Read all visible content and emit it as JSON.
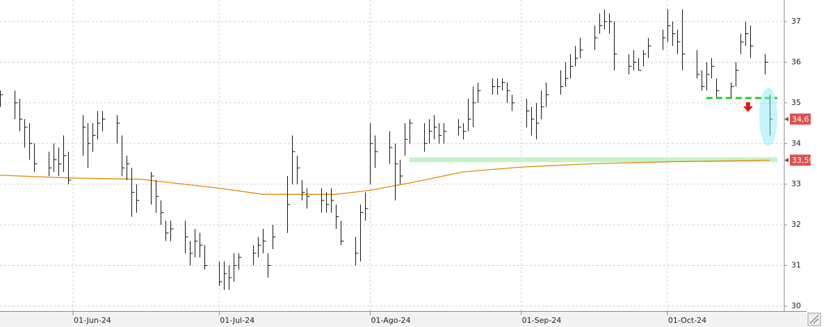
{
  "chart_data": {
    "type": "ohlc",
    "x": [
      "2024-05-17",
      "2024-05-20",
      "2024-05-21",
      "2024-05-22",
      "2024-05-23",
      "2024-05-24",
      "2024-05-27",
      "2024-05-28",
      "2024-05-29",
      "2024-05-30",
      "2024-05-31",
      "2024-06-03",
      "2024-06-04",
      "2024-06-05",
      "2024-06-06",
      "2024-06-07",
      "2024-06-10",
      "2024-06-11",
      "2024-06-12",
      "2024-06-13",
      "2024-06-14",
      "2024-06-17",
      "2024-06-18",
      "2024-06-19",
      "2024-06-20",
      "2024-06-21",
      "2024-06-24",
      "2024-06-25",
      "2024-06-26",
      "2024-06-27",
      "2024-06-28",
      "2024-07-01",
      "2024-07-02",
      "2024-07-03",
      "2024-07-04",
      "2024-07-05",
      "2024-07-08",
      "2024-07-09",
      "2024-07-10",
      "2024-07-11",
      "2024-07-12",
      "2024-07-15",
      "2024-07-16",
      "2024-07-17",
      "2024-07-18",
      "2024-07-19",
      "2024-07-22",
      "2024-07-23",
      "2024-07-24",
      "2024-07-25",
      "2024-07-26",
      "2024-07-29",
      "2024-07-30",
      "2024-07-31",
      "2024-08-01",
      "2024-08-02",
      "2024-08-05",
      "2024-08-06",
      "2024-08-07",
      "2024-08-08",
      "2024-08-09",
      "2024-08-12",
      "2024-08-13",
      "2024-08-14",
      "2024-08-15",
      "2024-08-16",
      "2024-08-19",
      "2024-08-20",
      "2024-08-21",
      "2024-08-22",
      "2024-08-23",
      "2024-08-26",
      "2024-08-27",
      "2024-08-28",
      "2024-08-29",
      "2024-08-30",
      "2024-09-02",
      "2024-09-03",
      "2024-09-04",
      "2024-09-05",
      "2024-09-06",
      "2024-09-09",
      "2024-09-10",
      "2024-09-11",
      "2024-09-12",
      "2024-09-13",
      "2024-09-16",
      "2024-09-17",
      "2024-09-18",
      "2024-09-19",
      "2024-09-20",
      "2024-09-23",
      "2024-09-24",
      "2024-09-25",
      "2024-09-26",
      "2024-09-27",
      "2024-09-30",
      "2024-10-01",
      "2024-10-02",
      "2024-10-03",
      "2024-10-04",
      "2024-10-07",
      "2024-10-08",
      "2024-10-09",
      "2024-10-10",
      "2024-10-11",
      "2024-10-14",
      "2024-10-15",
      "2024-10-16",
      "2024-10-17",
      "2024-10-18",
      "2024-10-21",
      "2024-10-22"
    ],
    "high": [
      35.3,
      35.3,
      35.1,
      34.6,
      34.5,
      34.0,
      33.8,
      34.0,
      33.9,
      34.2,
      33.8,
      34.7,
      34.5,
      34.5,
      34.8,
      34.8,
      34.7,
      34.2,
      33.7,
      33.4,
      33.0,
      33.3,
      33.1,
      32.6,
      32.1,
      32.1,
      32.1,
      31.6,
      31.9,
      31.8,
      31.5,
      31.1,
      31.1,
      31.0,
      31.3,
      31.3,
      31.5,
      31.7,
      31.9,
      31.3,
      32.0,
      33.2,
      34.2,
      33.7,
      33.1,
      32.9,
      32.9,
      32.8,
      32.9,
      32.5,
      32.1,
      31.7,
      32.5,
      32.8,
      34.5,
      34.2,
      34.3,
      34.0,
      33.6,
      34.5,
      34.6,
      34.5,
      34.6,
      34.7,
      34.5,
      34.5,
      34.6,
      34.5,
      35.1,
      35.4,
      35.5,
      35.6,
      35.6,
      35.6,
      35.5,
      35.2,
      35.1,
      34.9,
      35.0,
      35.3,
      35.5,
      35.8,
      36.0,
      36.2,
      36.4,
      36.6,
      36.9,
      37.2,
      37.3,
      37.2,
      37.0,
      36.2,
      36.3,
      36.1,
      36.3,
      36.6,
      36.8,
      37.3,
      37.0,
      36.8,
      37.3,
      36.3,
      35.8,
      36.0,
      36.1,
      35.6,
      35.5,
      36.0,
      36.7,
      37.0,
      36.9,
      36.2,
      35.2
    ],
    "low": [
      34.9,
      34.6,
      34.3,
      33.9,
      33.6,
      33.3,
      33.2,
      33.3,
      33.2,
      33.3,
      33.0,
      33.7,
      33.4,
      33.8,
      34.1,
      34.3,
      34.0,
      33.2,
      33.1,
      32.2,
      32.3,
      32.5,
      32.3,
      32.0,
      31.6,
      31.6,
      31.3,
      31.0,
      31.2,
      31.2,
      30.9,
      30.5,
      30.4,
      30.4,
      30.6,
      30.9,
      31.0,
      31.2,
      31.3,
      30.7,
      31.4,
      31.8,
      33.0,
      33.0,
      32.6,
      32.4,
      32.3,
      32.3,
      32.3,
      31.9,
      31.5,
      31.0,
      31.1,
      32.1,
      33.0,
      33.4,
      33.5,
      32.6,
      33.0,
      33.7,
      34.0,
      33.8,
      34.0,
      34.1,
      34.0,
      34.0,
      34.2,
      34.1,
      34.3,
      34.4,
      35.0,
      35.2,
      35.2,
      35.3,
      35.0,
      34.8,
      34.4,
      34.2,
      34.1,
      34.6,
      34.9,
      35.2,
      35.4,
      35.6,
      35.9,
      36.1,
      36.3,
      36.7,
      36.8,
      36.7,
      35.8,
      35.7,
      35.8,
      35.8,
      35.9,
      36.1,
      36.3,
      36.5,
      36.4,
      36.2,
      35.8,
      35.6,
      35.3,
      35.3,
      35.6,
      35.1,
      35.1,
      35.4,
      36.2,
      36.4,
      36.1,
      35.7,
      34.2
    ],
    "close": [
      35.2,
      35.0,
      34.6,
      34.4,
      34.0,
      33.5,
      33.4,
      33.6,
      33.5,
      33.7,
      33.1,
      34.4,
      34.0,
      34.2,
      34.5,
      34.6,
      34.5,
      33.4,
      33.5,
      32.8,
      32.6,
      33.2,
      32.7,
      32.3,
      31.8,
      31.9,
      31.7,
      31.3,
      31.6,
      31.5,
      31.0,
      30.6,
      30.8,
      30.7,
      31.0,
      31.2,
      31.3,
      31.5,
      31.6,
      31.0,
      31.7,
      32.5,
      33.8,
      33.4,
      32.8,
      32.7,
      32.6,
      32.5,
      32.6,
      32.2,
      31.6,
      31.3,
      32.3,
      32.4,
      34.0,
      33.8,
      33.9,
      33.5,
      33.2,
      34.1,
      34.5,
      34.0,
      34.3,
      34.4,
      34.2,
      34.3,
      34.4,
      34.3,
      34.6,
      35.0,
      35.3,
      35.4,
      35.4,
      35.5,
      35.3,
      35.0,
      34.8,
      34.6,
      34.5,
      34.9,
      35.2,
      35.4,
      35.6,
      35.9,
      36.1,
      36.3,
      36.6,
      36.9,
      37.0,
      37.0,
      36.2,
      35.9,
      36.0,
      35.8,
      36.2,
      36.4,
      36.6,
      36.9,
      36.7,
      36.5,
      36.2,
      35.7,
      35.4,
      35.7,
      35.9,
      35.3,
      35.4,
      35.8,
      36.5,
      36.7,
      36.4,
      36.0,
      34.6
    ],
    "bar_color": "#111111",
    "ma": {
      "color": "#e08a00",
      "x": [
        "2024-05-17",
        "2024-06-01",
        "2024-06-15",
        "2024-07-01",
        "2024-07-10",
        "2024-07-25",
        "2024-08-01",
        "2024-08-10",
        "2024-08-20",
        "2024-09-01",
        "2024-09-15",
        "2024-10-01",
        "2024-10-22"
      ],
      "values": [
        33.22,
        33.15,
        33.12,
        32.9,
        32.75,
        32.75,
        32.85,
        33.05,
        33.3,
        33.42,
        33.5,
        33.55,
        33.59
      ]
    },
    "xlim": [
      "2024-05-17",
      "2024-10-25"
    ],
    "ylim": [
      29.88,
      37.53
    ],
    "yticks": [
      30,
      31,
      32,
      33,
      34,
      35,
      36,
      37
    ],
    "xticks": [
      {
        "value": "2024-06-01",
        "label": "01-Jun-24"
      },
      {
        "value": "2024-07-01",
        "label": "01-Jul-24"
      },
      {
        "value": "2024-08-01",
        "label": "01-Ago-24"
      },
      {
        "value": "2024-09-01",
        "label": "01-Sep-24"
      },
      {
        "value": "2024-10-01",
        "label": "01-Oct-24"
      }
    ],
    "grid": true,
    "price_labels": [
      {
        "value": 34.6,
        "label": "34,6"
      },
      {
        "value": 33.59,
        "label": "33,59"
      }
    ],
    "price_label_color": "#e05050",
    "support": {
      "start": "2024-08-09",
      "value": 33.6,
      "color": "#c6f3c6"
    },
    "resistance": {
      "start": "2024-10-09",
      "value": 35.12,
      "color": "#22cc22"
    }
  }
}
